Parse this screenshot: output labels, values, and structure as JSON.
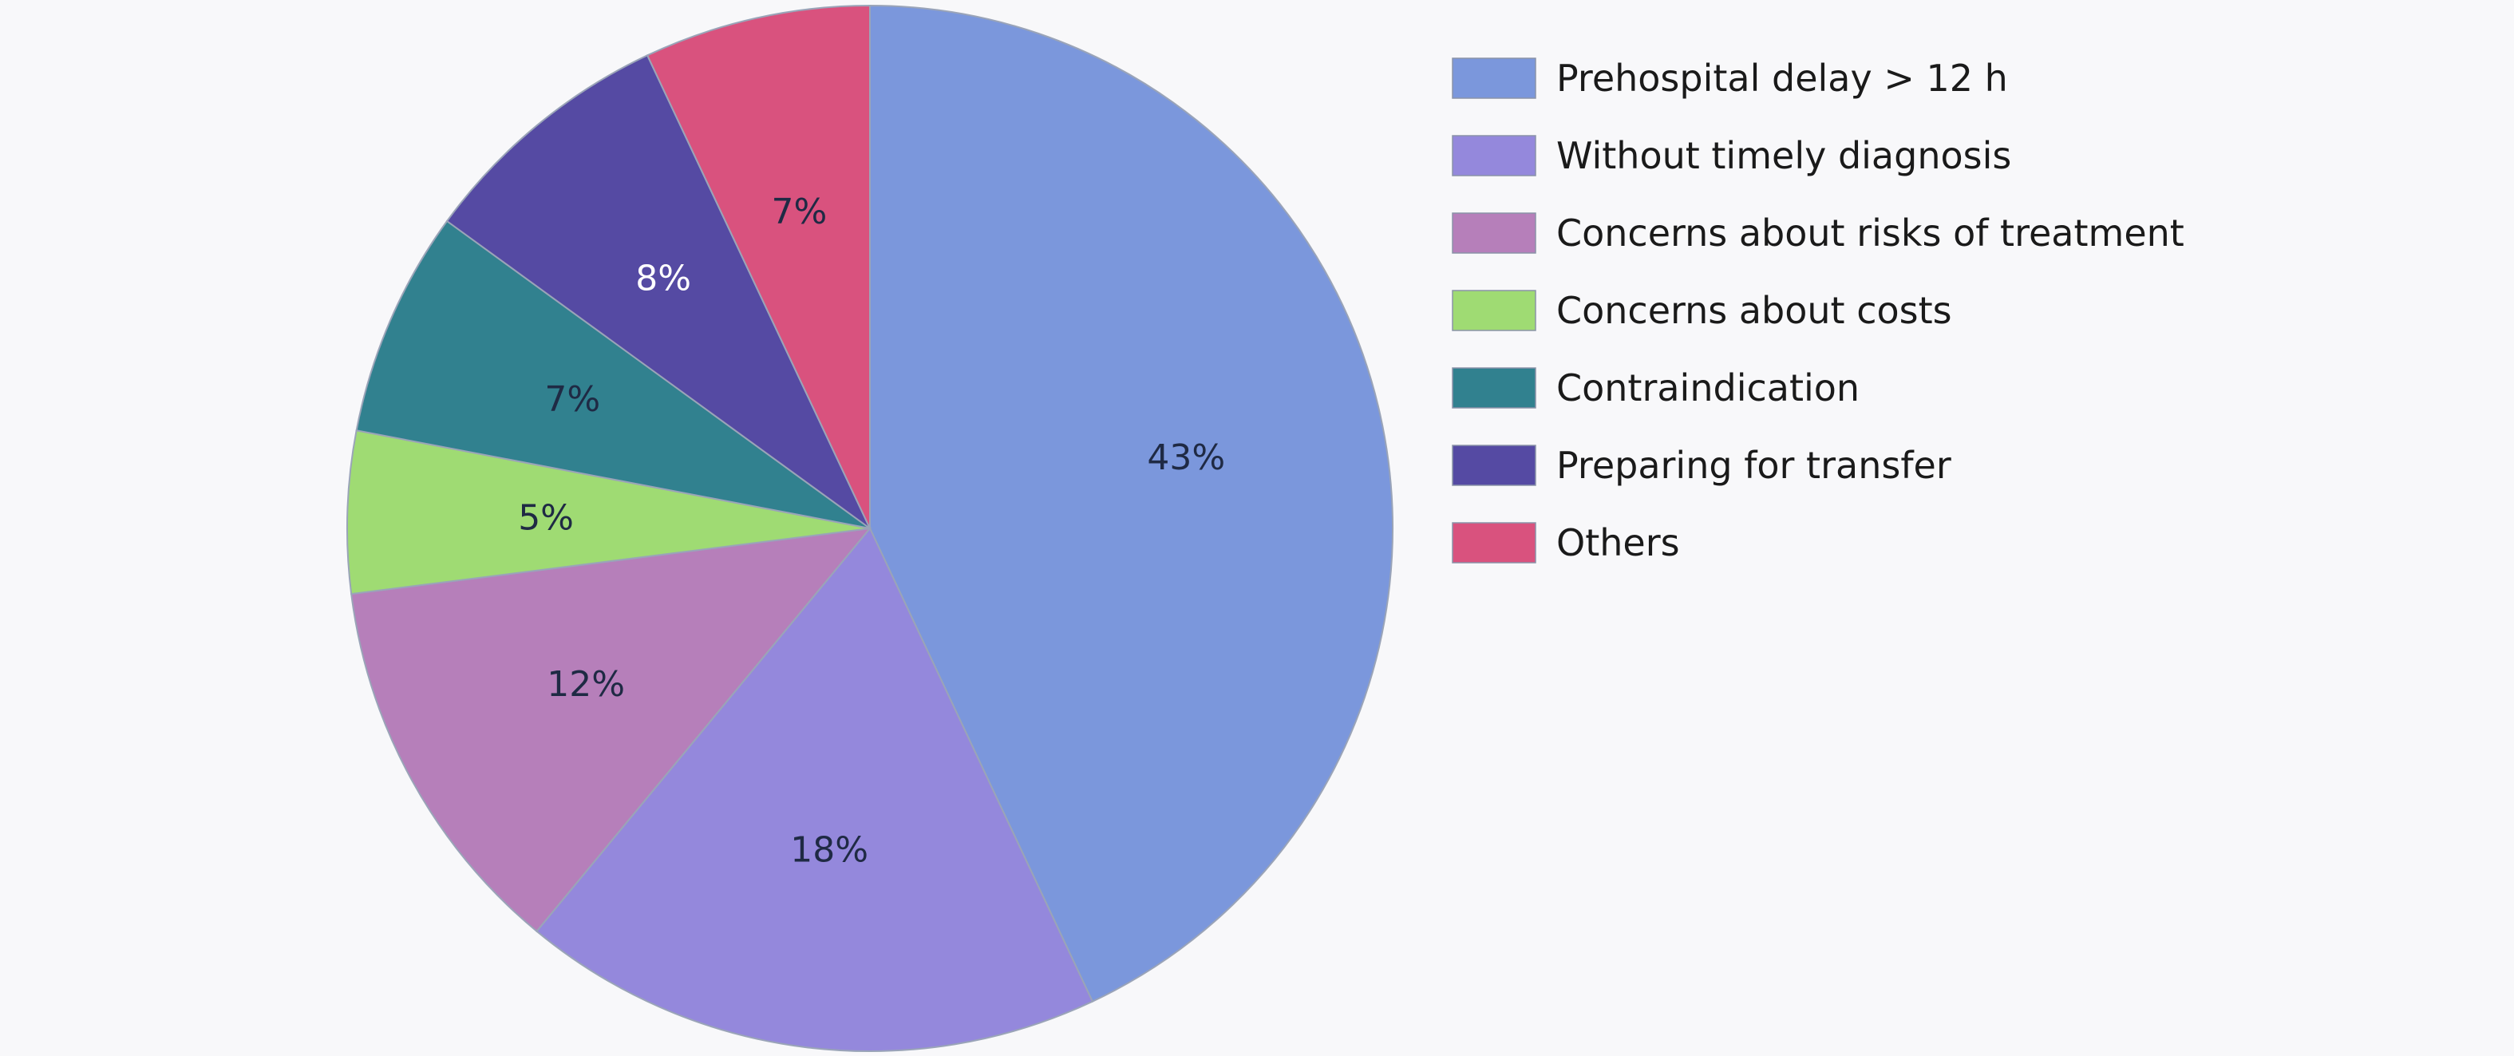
{
  "chart_data": {
    "type": "pie",
    "title": "",
    "legend_position": "right",
    "slices": [
      {
        "name": "Prehospital delay > 12 h",
        "value": 43,
        "label": "43%",
        "color": "#7b97dc",
        "label_color": "#1f2a44"
      },
      {
        "name": "Without timely diagnosis",
        "value": 18,
        "label": "18%",
        "color": "#9488dc",
        "label_color": "#1f2a44"
      },
      {
        "name": "Concerns about risks of treatment",
        "value": 12,
        "label": "12%",
        "color": "#b67fba",
        "label_color": "#1f2a44"
      },
      {
        "name": "Concerns about costs",
        "value": 5,
        "label": "5%",
        "color": "#9fdb73",
        "label_color": "#1f2a44"
      },
      {
        "name": "Contraindication",
        "value": 7,
        "label": "7%",
        "color": "#31818f",
        "label_color": "#1f2a44"
      },
      {
        "name": "Preparing for transfer",
        "value": 8,
        "label": "8%",
        "color": "#554aa3",
        "label_color": "#ffffff"
      },
      {
        "name": "Others",
        "value": 7,
        "label": "7%",
        "color": "#d9527e",
        "label_color": "#1f2a44"
      }
    ]
  }
}
